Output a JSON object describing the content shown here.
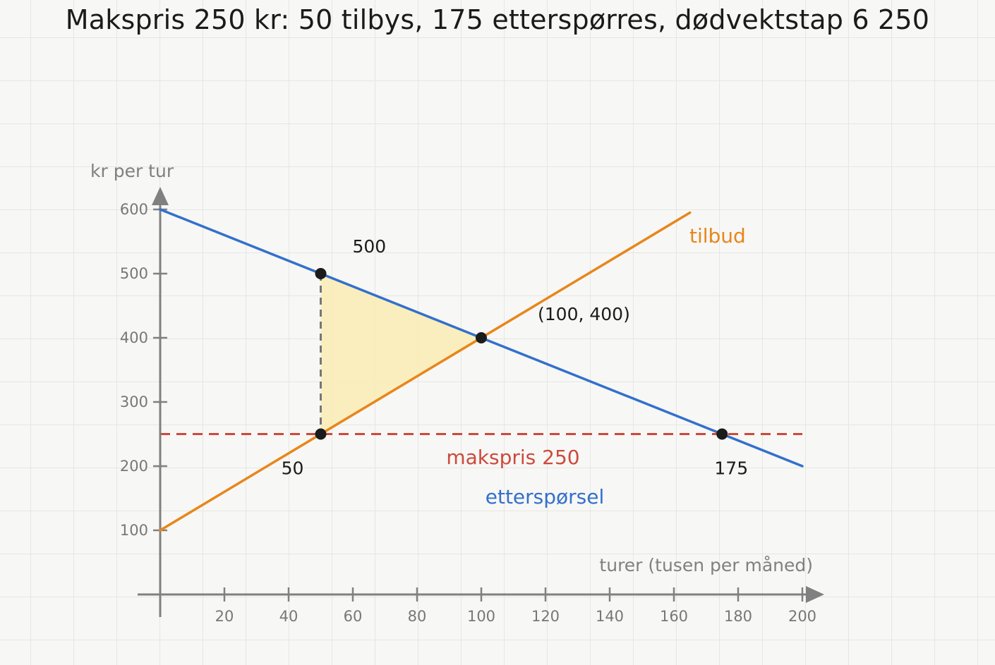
{
  "chart_data": {
    "type": "line",
    "title": "Makspris 250 kr: 50 tilbys, 175 etterspørres, dødvektstap 6 250",
    "xlabel": "turer (tusen per måned)",
    "ylabel": "kr per tur",
    "xlim": [
      0,
      200
    ],
    "ylim": [
      0,
      600
    ],
    "x_ticks": [
      20,
      40,
      60,
      80,
      100,
      120,
      140,
      160,
      180,
      200
    ],
    "y_ticks": [
      100,
      200,
      300,
      400,
      500,
      600
    ],
    "grid": true,
    "series": [
      {
        "name": "tilbud",
        "color": "#e8861a",
        "x": [
          0,
          165
        ],
        "y": [
          100,
          595
        ]
      },
      {
        "name": "etterspørsel",
        "color": "#3370cc",
        "x": [
          0,
          200
        ],
        "y": [
          600,
          200
        ]
      }
    ],
    "price_ceiling": {
      "label": "makspris 250",
      "y": 250,
      "x_range": [
        0,
        200
      ],
      "color": "#cc4a3c"
    },
    "deadweight_loss_area": {
      "vertices": [
        [
          50,
          500
        ],
        [
          100,
          400
        ],
        [
          50,
          250
        ]
      ],
      "color": "#f9ecb8"
    },
    "drop_line": {
      "x": 50,
      "y_range": [
        250,
        500
      ],
      "color": "#777777"
    },
    "points": [
      {
        "x": 50,
        "y": 500,
        "label": "500"
      },
      {
        "x": 100,
        "y": 400,
        "label": "(100, 400)"
      },
      {
        "x": 50,
        "y": 250,
        "label": "50"
      },
      {
        "x": 175,
        "y": 250,
        "label": "175"
      }
    ]
  }
}
